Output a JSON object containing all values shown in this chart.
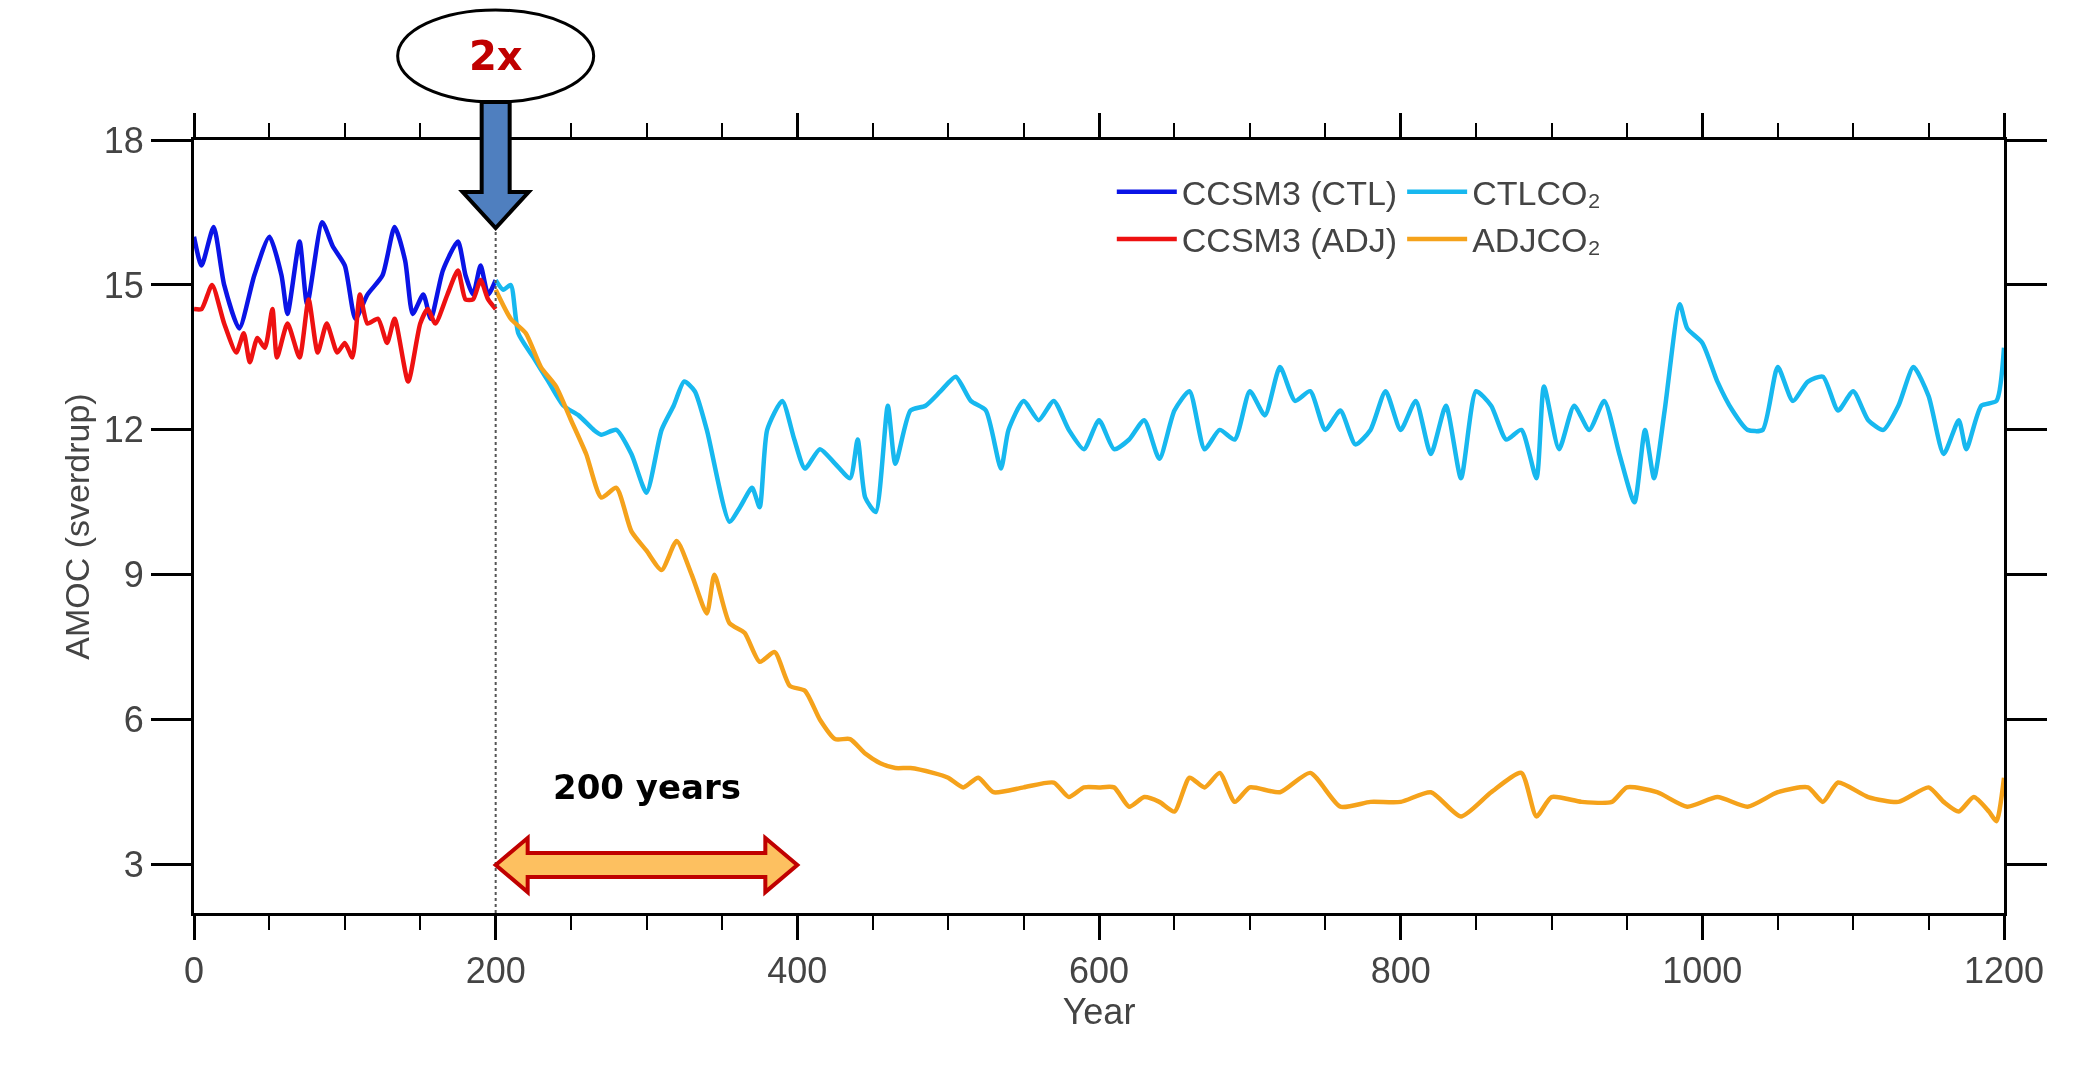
{
  "chart_data": {
    "type": "line",
    "xlabel": "Year",
    "ylabel": "AMOC (sverdrup)",
    "xlim": [
      0,
      1200
    ],
    "ylim": [
      2,
      18
    ],
    "xticks": [
      0,
      200,
      400,
      600,
      800,
      1000,
      1200
    ],
    "yticks": [
      3,
      6,
      9,
      12,
      15,
      18
    ],
    "legend": "top right",
    "marker": "none",
    "line_style": "solid",
    "ref_lines": [
      {
        "axis": "x",
        "value": 200,
        "color": "#555555",
        "line_style": "dotted"
      }
    ],
    "annotations": [
      {
        "text": "2x",
        "x": 200,
        "y": 18
      },
      "200 years"
    ],
    "series": [
      {
        "name": "CCSM3 (CTL)",
        "color": "#0a14e6",
        "x": [
          0,
          5,
          13,
          20,
          30,
          40,
          50,
          58,
          62,
          70,
          75,
          85,
          92,
          100,
          107,
          115,
          125,
          133,
          140,
          145,
          152,
          157,
          165,
          175,
          180,
          185,
          190,
          195,
          200
        ],
        "values": [
          16.0,
          15.4,
          16.2,
          15.0,
          14.1,
          15.2,
          16.0,
          15.2,
          14.4,
          15.9,
          14.6,
          16.3,
          15.8,
          15.4,
          14.3,
          14.8,
          15.2,
          16.2,
          15.5,
          14.4,
          14.8,
          14.3,
          15.3,
          15.9,
          15.2,
          14.8,
          15.4,
          14.8,
          15.1
        ]
      },
      {
        "name": "CCSM3 (ADJ)",
        "color": "#ee1111",
        "x": [
          0,
          5,
          12,
          20,
          28,
          33,
          37,
          42,
          47,
          52,
          55,
          62,
          70,
          76,
          82,
          88,
          95,
          100,
          105,
          110,
          115,
          122,
          128,
          133,
          142,
          150,
          155,
          160,
          168,
          175,
          180,
          185,
          190,
          195,
          200
        ],
        "values": [
          14.5,
          14.5,
          15.0,
          14.2,
          13.6,
          14.0,
          13.4,
          13.9,
          13.7,
          14.5,
          13.5,
          14.2,
          13.5,
          14.7,
          13.6,
          14.2,
          13.6,
          13.8,
          13.5,
          14.8,
          14.2,
          14.3,
          13.8,
          14.3,
          13.0,
          14.2,
          14.5,
          14.2,
          14.8,
          15.3,
          14.7,
          14.7,
          15.1,
          14.7,
          14.5
        ]
      },
      {
        "name": "CTLCO₂",
        "color": "#17b8ef",
        "x": [
          200,
          205,
          210,
          215,
          225,
          235,
          245,
          255,
          265,
          270,
          280,
          290,
          300,
          310,
          318,
          325,
          332,
          340,
          355,
          362,
          370,
          375,
          380,
          390,
          398,
          405,
          415,
          425,
          435,
          440,
          445,
          452,
          460,
          465,
          475,
          485,
          495,
          505,
          515,
          525,
          535,
          540,
          550,
          560,
          570,
          580,
          590,
          600,
          610,
          620,
          630,
          640,
          650,
          660,
          670,
          680,
          690,
          700,
          710,
          720,
          730,
          740,
          750,
          760,
          770,
          780,
          790,
          800,
          810,
          820,
          830,
          840,
          850,
          860,
          870,
          880,
          890,
          895,
          905,
          915,
          925,
          935,
          945,
          955,
          962,
          968,
          975,
          985,
          990,
          1000,
          1010,
          1020,
          1030,
          1040,
          1050,
          1060,
          1070,
          1080,
          1090,
          1100,
          1110,
          1120,
          1130,
          1140,
          1150,
          1160,
          1170,
          1175,
          1185,
          1195,
          1200
        ],
        "values": [
          15.1,
          14.9,
          15.0,
          14.0,
          13.5,
          13.0,
          12.5,
          12.3,
          12.0,
          11.9,
          12.0,
          11.5,
          10.7,
          12.0,
          12.5,
          13.0,
          12.8,
          12.0,
          10.1,
          10.4,
          10.8,
          10.4,
          12.0,
          12.6,
          11.8,
          11.2,
          11.6,
          11.3,
          11.0,
          11.8,
          10.6,
          10.3,
          12.5,
          11.3,
          12.4,
          12.5,
          12.8,
          13.1,
          12.6,
          12.4,
          11.2,
          12.0,
          12.6,
          12.2,
          12.6,
          12.0,
          11.6,
          12.2,
          11.6,
          11.8,
          12.2,
          11.4,
          12.4,
          12.8,
          11.6,
          12.0,
          11.8,
          12.8,
          12.3,
          13.3,
          12.6,
          12.8,
          12.0,
          12.4,
          11.7,
          12.0,
          12.8,
          12.0,
          12.6,
          11.5,
          12.5,
          11.0,
          12.8,
          12.5,
          11.8,
          12.0,
          11.0,
          12.9,
          11.6,
          12.5,
          12.0,
          12.6,
          11.5,
          10.5,
          12.0,
          11.0,
          12.4,
          14.6,
          14.1,
          13.8,
          13.0,
          12.4,
          12.0,
          12.0,
          13.3,
          12.6,
          13.0,
          13.1,
          12.4,
          12.8,
          12.2,
          12.0,
          12.5,
          13.3,
          12.7,
          11.5,
          12.2,
          11.6,
          12.5,
          12.6,
          13.7
        ]
      },
      {
        "name": "ADJCO₂",
        "color": "#f5a21b",
        "x": [
          200,
          210,
          220,
          230,
          240,
          250,
          260,
          270,
          280,
          290,
          300,
          310,
          320,
          330,
          340,
          345,
          355,
          365,
          375,
          385,
          395,
          405,
          415,
          425,
          435,
          445,
          455,
          465,
          475,
          490,
          500,
          510,
          520,
          530,
          550,
          570,
          580,
          590,
          600,
          610,
          620,
          630,
          640,
          650,
          660,
          670,
          680,
          690,
          700,
          720,
          740,
          760,
          780,
          800,
          820,
          840,
          860,
          880,
          890,
          900,
          920,
          940,
          950,
          970,
          990,
          1010,
          1030,
          1050,
          1070,
          1080,
          1090,
          1110,
          1130,
          1150,
          1160,
          1170,
          1180,
          1190,
          1195,
          1200
        ],
        "values": [
          14.9,
          14.3,
          14.0,
          13.3,
          12.9,
          12.2,
          11.5,
          10.6,
          10.8,
          9.9,
          9.5,
          9.1,
          9.7,
          9.0,
          8.2,
          9.0,
          8.0,
          7.8,
          7.2,
          7.4,
          6.7,
          6.6,
          6.0,
          5.6,
          5.6,
          5.3,
          5.1,
          5.0,
          5.0,
          4.9,
          4.8,
          4.6,
          4.8,
          4.5,
          4.6,
          4.7,
          4.4,
          4.6,
          4.6,
          4.6,
          4.2,
          4.4,
          4.3,
          4.1,
          4.8,
          4.6,
          4.9,
          4.3,
          4.6,
          4.5,
          4.9,
          4.2,
          4.3,
          4.3,
          4.5,
          4.0,
          4.5,
          4.9,
          4.0,
          4.4,
          4.3,
          4.3,
          4.6,
          4.5,
          4.2,
          4.4,
          4.2,
          4.5,
          4.6,
          4.3,
          4.7,
          4.4,
          4.3,
          4.6,
          4.3,
          4.1,
          4.4,
          4.1,
          3.9,
          4.8
        ]
      }
    ]
  }
}
